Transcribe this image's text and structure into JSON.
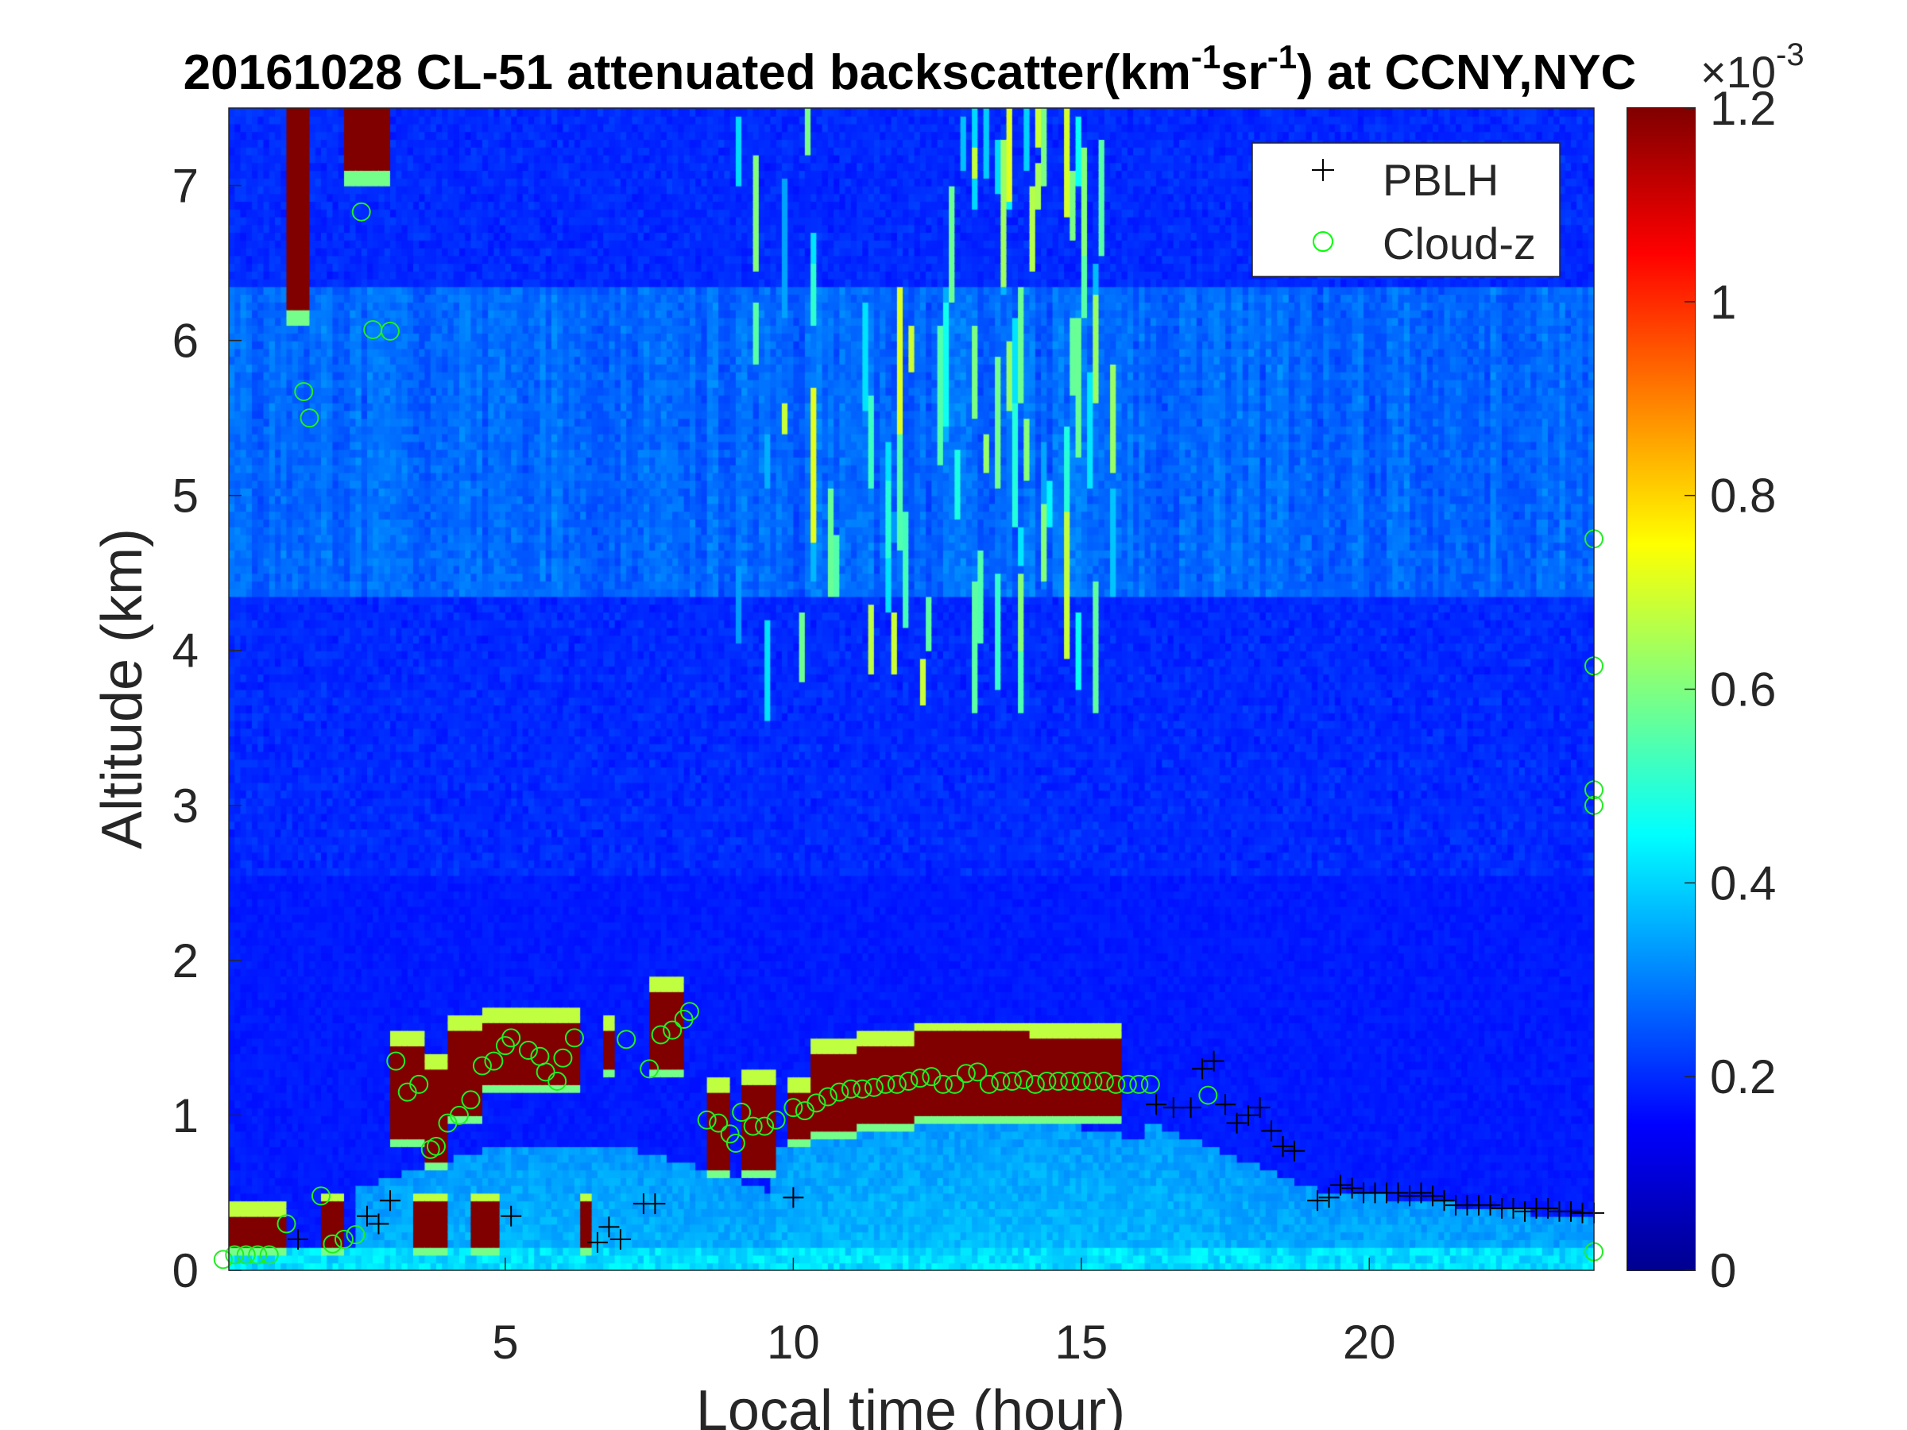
{
  "chart_data": {
    "type": "heatmap",
    "title": "20161028  CL-51 attenuated backscatter(km",
    "title_sup1": "-1",
    "title_mid": "sr",
    "title_sup2": "-1",
    "title_end": ") at CCNY,NYC",
    "xlabel": "Local time (hour)",
    "ylabel": "Altitude (km)",
    "xlim": [
      0.2,
      23.9
    ],
    "ylim": [
      0,
      7.5
    ],
    "xticks": [
      "5",
      "10",
      "15",
      "20"
    ],
    "xtick_values": [
      5,
      10,
      15,
      20
    ],
    "yticks": [
      "0",
      "1",
      "2",
      "3",
      "4",
      "5",
      "6",
      "7"
    ],
    "ytick_values": [
      0,
      1,
      2,
      3,
      4,
      5,
      6,
      7
    ],
    "colorbar": {
      "range": [
        0,
        1.2
      ],
      "ticks": [
        "0",
        "0.2",
        "0.4",
        "0.6",
        "0.8",
        "1",
        "1.2"
      ],
      "tick_values": [
        0,
        0.2,
        0.4,
        0.6,
        0.8,
        1.0,
        1.2
      ],
      "exponent_label": "×10",
      "exponent": "-3",
      "colormap": "jet"
    },
    "legend": {
      "position": "top-right",
      "entries": [
        {
          "label": "PBLH",
          "marker": "+",
          "color": "#000000"
        },
        {
          "label": "Cloud-z",
          "marker": "o",
          "color": "#00ff00"
        }
      ]
    },
    "cloud_layers": [
      [
        0.2,
        1.2,
        0.15,
        0.35
      ],
      [
        1.2,
        1.6,
        6.15,
        7.5
      ],
      [
        1.8,
        2.2,
        0.15,
        0.42
      ],
      [
        2.2,
        3.0,
        7.05,
        7.5
      ],
      [
        3.0,
        3.6,
        0.82,
        1.45
      ],
      [
        3.6,
        4.0,
        0.7,
        1.3
      ],
      [
        4.0,
        4.6,
        1.0,
        1.55
      ],
      [
        4.6,
        5.4,
        1.2,
        1.6
      ],
      [
        5.4,
        6.2,
        1.2,
        1.6
      ],
      [
        6.6,
        6.8,
        1.3,
        1.55
      ],
      [
        7.4,
        8.0,
        1.3,
        1.8
      ],
      [
        3.4,
        4.0,
        0.15,
        0.4
      ],
      [
        4.4,
        4.8,
        0.15,
        0.4
      ],
      [
        6.2,
        6.4,
        0.15,
        0.4
      ],
      [
        8.4,
        8.8,
        0.65,
        1.15
      ],
      [
        9.0,
        9.6,
        0.65,
        1.2
      ],
      [
        9.8,
        10.2,
        0.85,
        1.15
      ],
      [
        10.2,
        11.0,
        0.88,
        1.4
      ],
      [
        11.0,
        12.0,
        0.95,
        1.45
      ],
      [
        12.0,
        14.0,
        0.98,
        1.52
      ],
      [
        14.0,
        15.6,
        0.98,
        1.5
      ]
    ],
    "series": [
      {
        "name": "PBLH",
        "x": [
          1.4,
          2.6,
          2.8,
          3.0,
          5.1,
          6.6,
          6.8,
          7.0,
          7.4,
          7.6,
          10.0,
          16.3,
          16.6,
          16.9,
          17.1,
          17.3,
          17.5,
          17.7,
          17.9,
          18.1,
          18.3,
          18.5,
          18.7,
          19.1,
          19.3,
          19.5,
          19.7,
          19.9,
          20.1,
          20.3,
          20.5,
          20.7,
          20.9,
          21.1,
          21.3,
          21.5,
          21.7,
          21.9,
          22.1,
          22.3,
          22.5,
          22.7,
          22.9,
          23.1,
          23.3,
          23.5,
          23.7,
          23.9
        ],
        "y": [
          0.2,
          0.35,
          0.3,
          0.45,
          0.35,
          0.18,
          0.28,
          0.2,
          0.43,
          0.43,
          0.47,
          1.07,
          1.05,
          1.05,
          1.3,
          1.35,
          1.07,
          0.95,
          1.0,
          1.05,
          0.9,
          0.8,
          0.77,
          0.45,
          0.47,
          0.55,
          0.53,
          0.5,
          0.5,
          0.5,
          0.5,
          0.48,
          0.5,
          0.48,
          0.45,
          0.42,
          0.42,
          0.42,
          0.42,
          0.4,
          0.4,
          0.38,
          0.4,
          0.4,
          0.38,
          0.38,
          0.37,
          0.37
        ]
      },
      {
        "name": "Cloud-z",
        "x": [
          0.1,
          0.3,
          0.5,
          0.7,
          0.9,
          1.2,
          1.5,
          1.6,
          1.8,
          2.0,
          2.2,
          2.4,
          2.5,
          2.7,
          3.0,
          3.1,
          3.3,
          3.5,
          3.7,
          3.8,
          4.0,
          4.2,
          4.4,
          4.6,
          4.8,
          5.0,
          5.1,
          5.4,
          5.6,
          5.7,
          5.9,
          6.0,
          6.2,
          7.1,
          7.5,
          7.7,
          7.9,
          8.1,
          8.2,
          8.5,
          8.7,
          8.9,
          9.0,
          9.1,
          9.3,
          9.5,
          9.7,
          10.0,
          10.2,
          10.4,
          10.6,
          10.8,
          11.0,
          11.2,
          11.4,
          11.6,
          11.8,
          12.0,
          12.2,
          12.4,
          12.6,
          12.8,
          13.0,
          13.2,
          13.4,
          13.6,
          13.8,
          14.0,
          14.2,
          14.4,
          14.6,
          14.8,
          15.0,
          15.2,
          15.4,
          15.6,
          15.8,
          16.0,
          16.2,
          17.2,
          23.9,
          23.9,
          23.9,
          23.9,
          23.9
        ],
        "y": [
          0.07,
          0.1,
          0.1,
          0.1,
          0.1,
          0.3,
          5.67,
          5.5,
          0.48,
          0.17,
          0.2,
          0.23,
          6.83,
          6.07,
          6.06,
          1.35,
          1.15,
          1.2,
          0.78,
          0.8,
          0.95,
          1.0,
          1.1,
          1.32,
          1.35,
          1.45,
          1.5,
          1.42,
          1.38,
          1.28,
          1.22,
          1.37,
          1.5,
          1.49,
          1.3,
          1.52,
          1.55,
          1.62,
          1.67,
          0.97,
          0.95,
          0.88,
          0.82,
          1.02,
          0.93,
          0.93,
          0.97,
          1.05,
          1.03,
          1.08,
          1.12,
          1.15,
          1.17,
          1.17,
          1.18,
          1.2,
          1.2,
          1.22,
          1.24,
          1.25,
          1.2,
          1.2,
          1.27,
          1.28,
          1.2,
          1.22,
          1.22,
          1.23,
          1.2,
          1.22,
          1.22,
          1.22,
          1.22,
          1.22,
          1.22,
          1.2,
          1.2,
          1.2,
          1.2,
          1.13,
          4.72,
          3.9,
          3.1,
          3.0,
          0.12
        ]
      }
    ]
  }
}
